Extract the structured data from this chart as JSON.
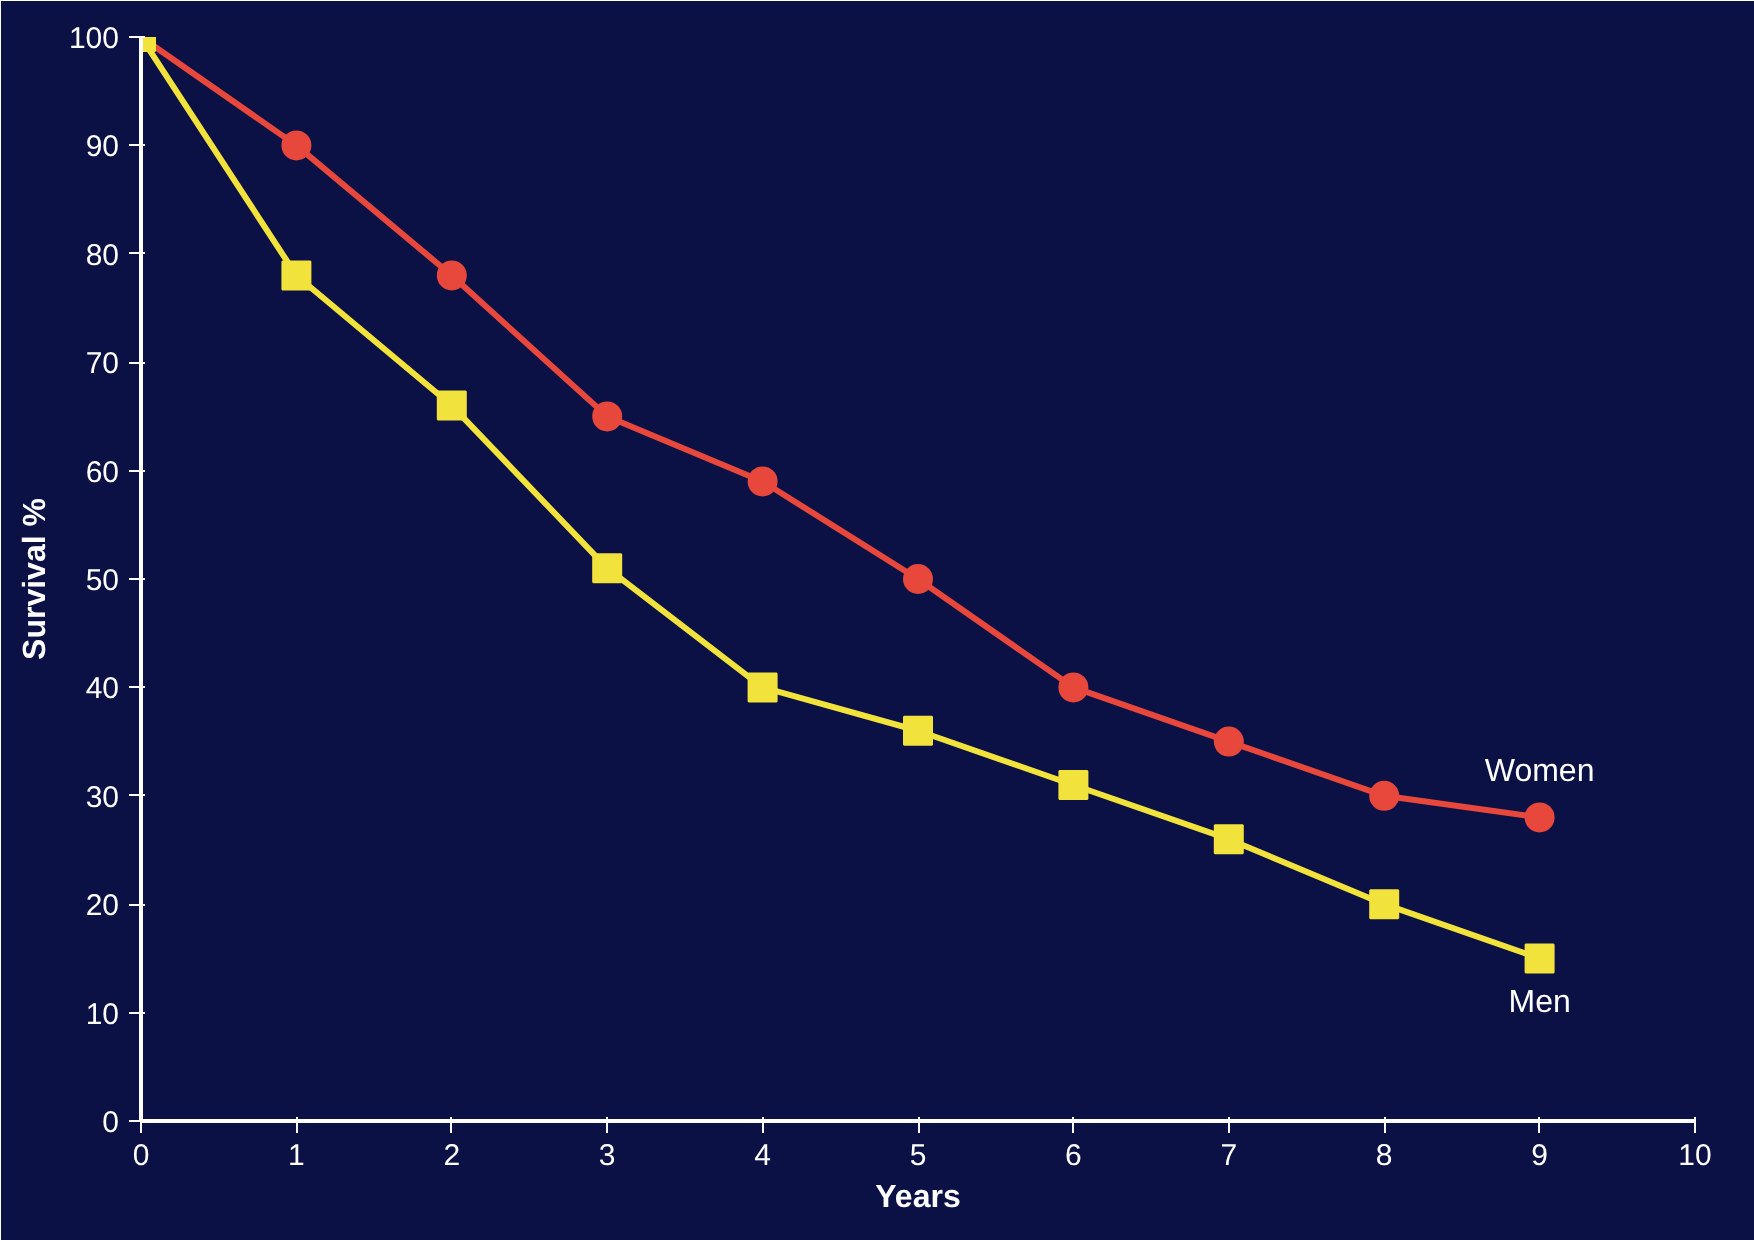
{
  "chart_data": {
    "type": "line",
    "xlabel": "Years",
    "ylabel": "Survival %",
    "x": [
      0,
      1,
      2,
      3,
      4,
      5,
      6,
      7,
      8,
      9
    ],
    "series": [
      {
        "name": "Women",
        "color": "#e8483c",
        "marker": "circle",
        "values": [
          100,
          90,
          78,
          65,
          59,
          50,
          40,
          35,
          30,
          28
        ]
      },
      {
        "name": "Men",
        "color": "#f2e23c",
        "marker": "square",
        "values": [
          100,
          78,
          66,
          51,
          40,
          36,
          31,
          26,
          20,
          15
        ]
      }
    ],
    "xlim": [
      0,
      10
    ],
    "xticks": [
      0,
      1,
      2,
      3,
      4,
      5,
      6,
      7,
      8,
      9,
      10
    ],
    "ylim": [
      0,
      100
    ],
    "yticks": [
      0,
      10,
      20,
      30,
      40,
      50,
      60,
      70,
      80,
      90,
      100
    ],
    "grid": false,
    "legend": false,
    "line_style": "solid"
  }
}
